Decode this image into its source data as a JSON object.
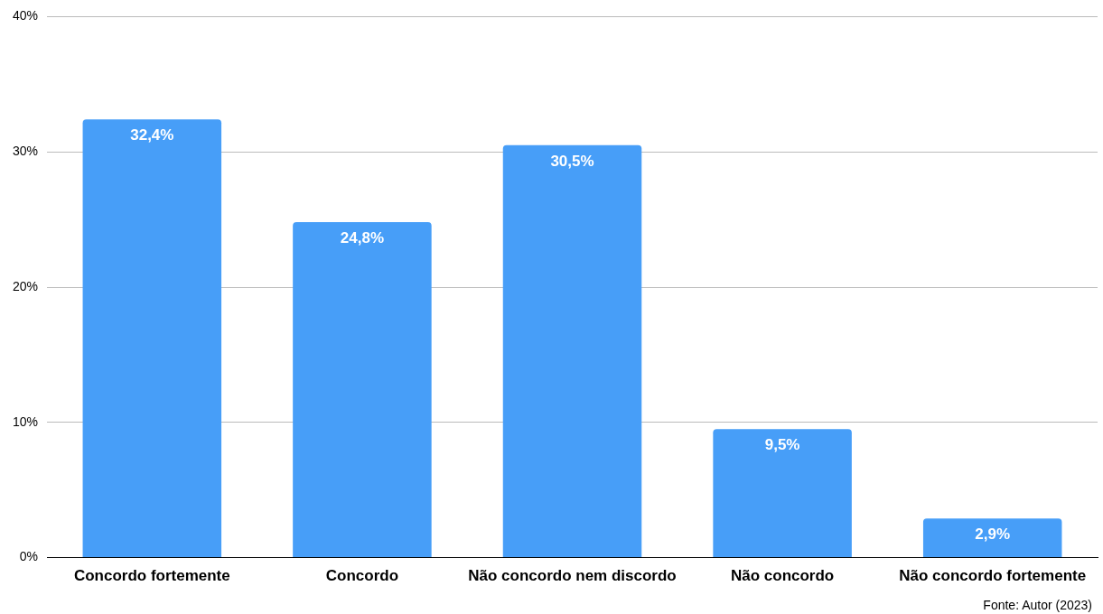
{
  "chart_data": {
    "type": "bar",
    "categories": [
      "Concordo fortemente",
      "Concordo",
      "Não concordo nem discordo",
      "Não concordo",
      "Não concordo fortemente"
    ],
    "values": [
      32.4,
      24.8,
      30.5,
      9.5,
      2.9
    ],
    "value_labels": [
      "32,4%",
      "24,8%",
      "30,5%",
      "9,5%",
      "2,9%"
    ],
    "color": "#479ef8",
    "ylim": [
      0,
      40
    ],
    "yticks": [
      {
        "value": 0,
        "label": "0%"
      },
      {
        "value": 10,
        "label": "10%"
      },
      {
        "value": 20,
        "label": "20%"
      },
      {
        "value": 30,
        "label": "30%"
      },
      {
        "value": 40,
        "label": "40%"
      }
    ],
    "grid": "y",
    "legend": false,
    "annotations": [
      "Fonte: Autor (2023)"
    ]
  }
}
